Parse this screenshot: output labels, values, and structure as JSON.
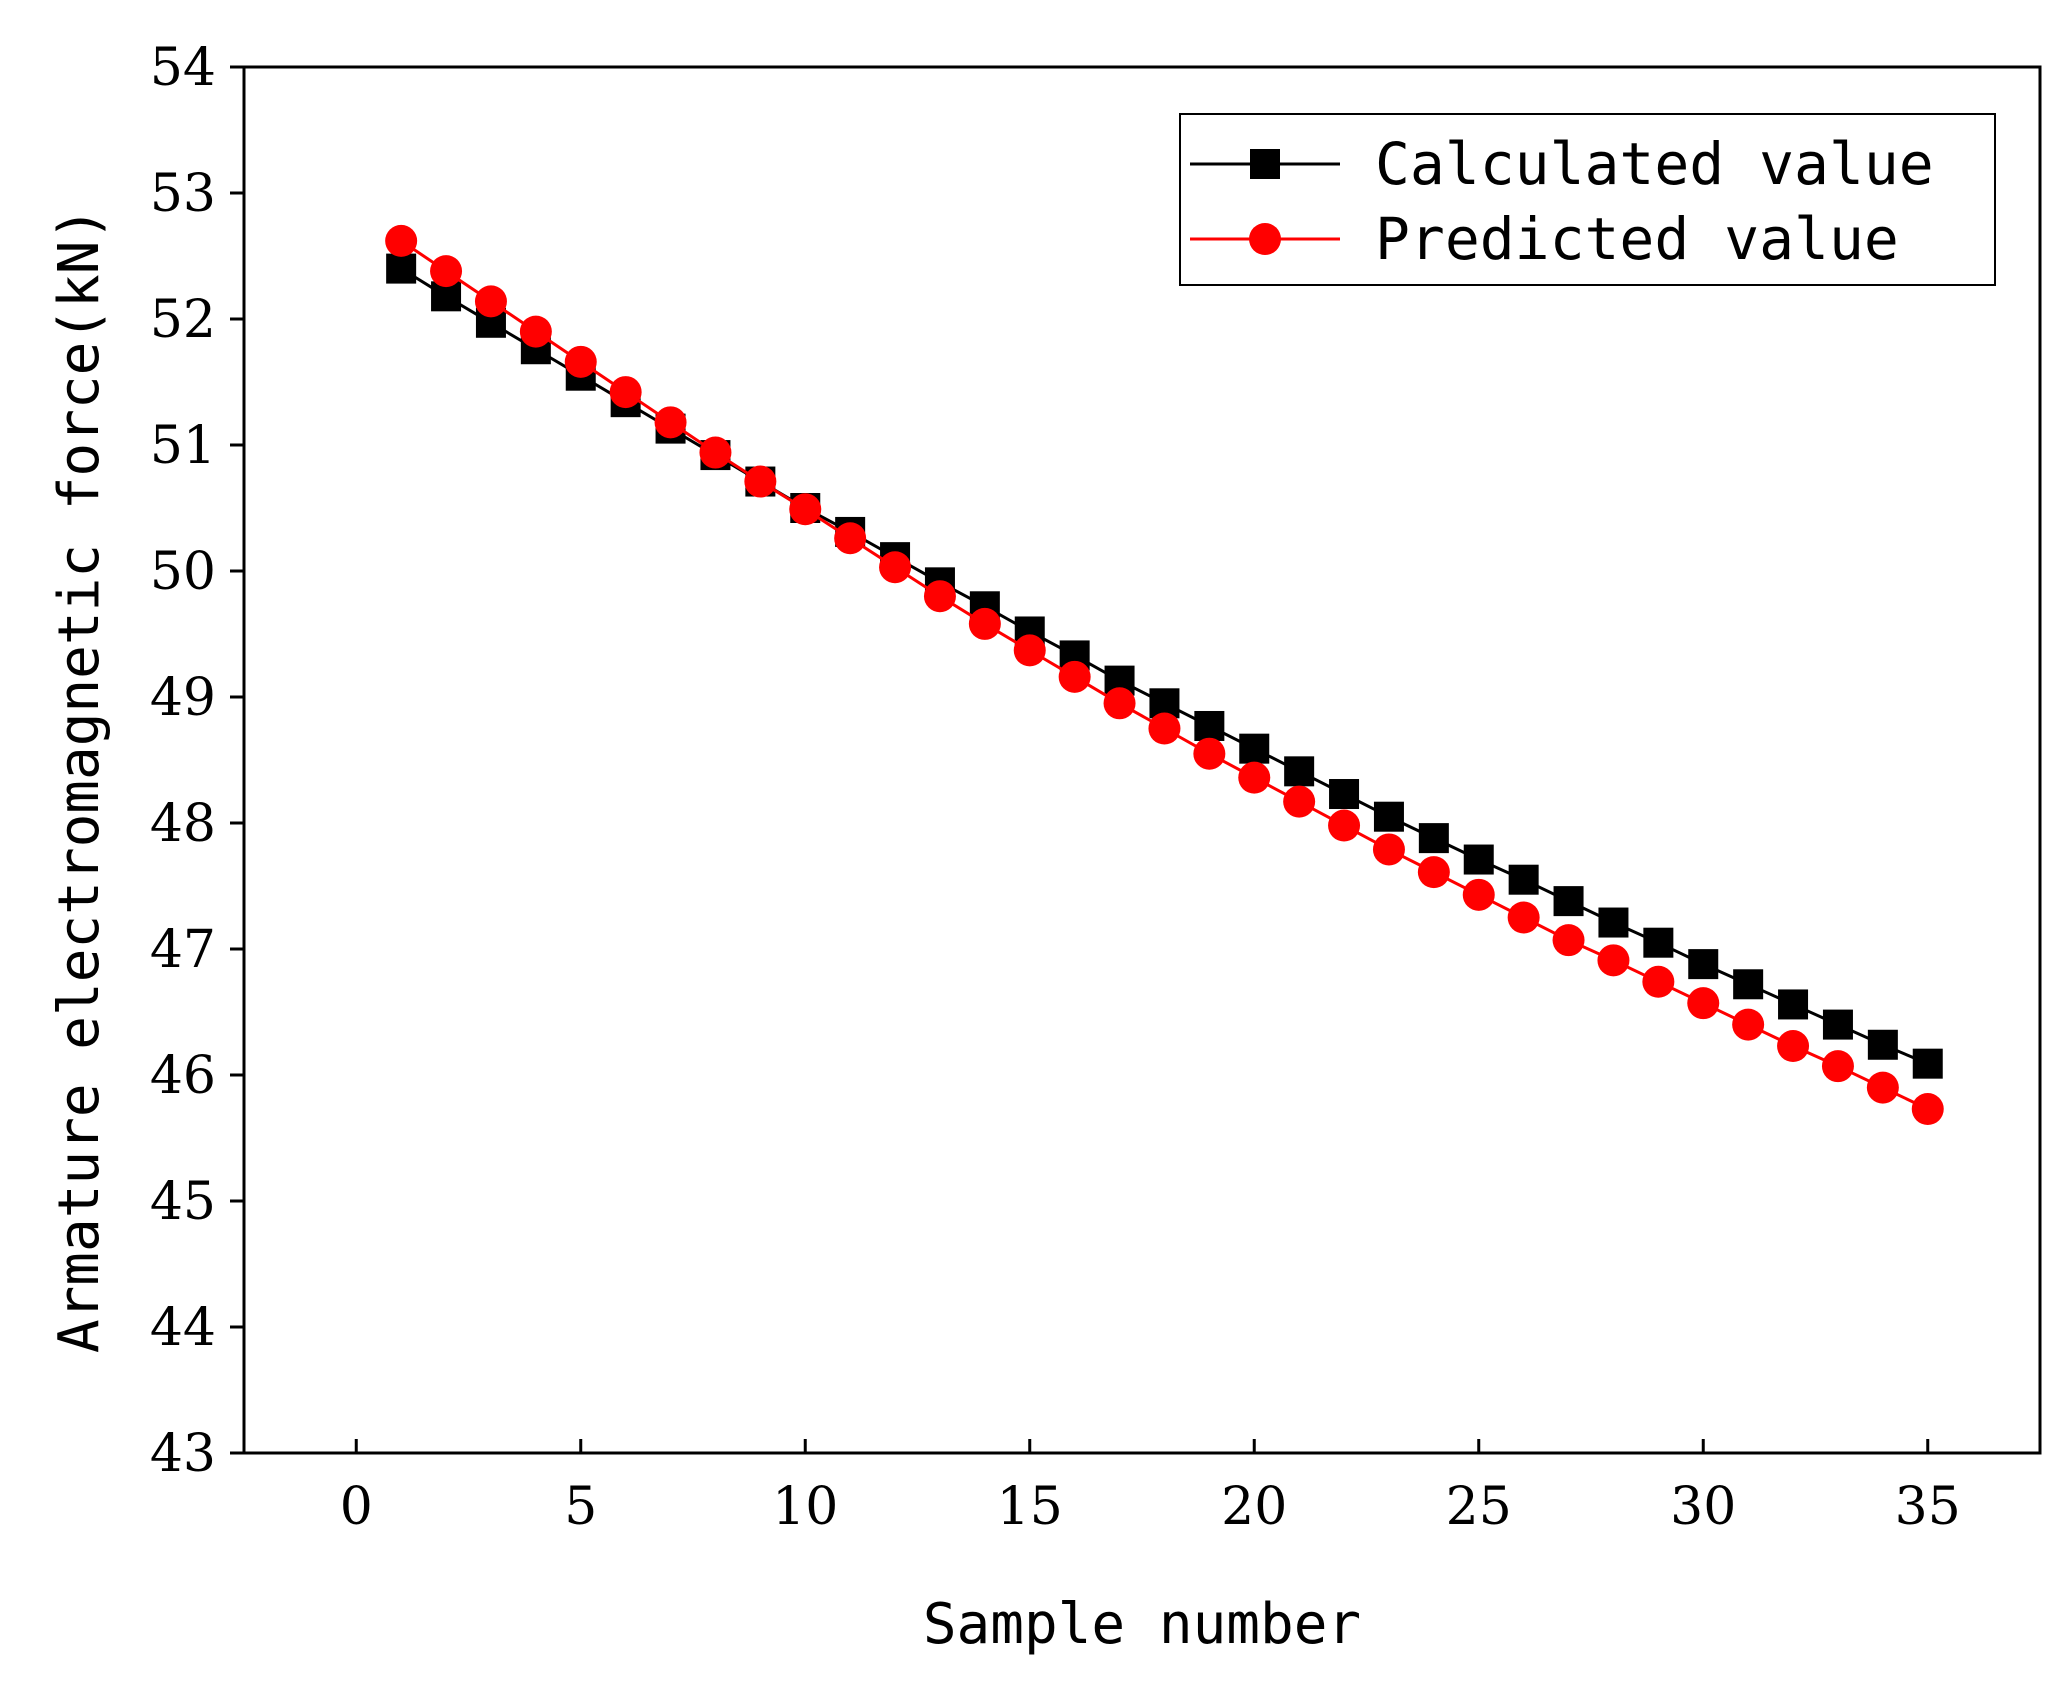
{
  "chart_data": {
    "type": "line",
    "xlabel": "Sample number",
    "ylabel": "Armature electromagnetic force(kN)",
    "xlim": [
      -2.5,
      37.5
    ],
    "ylim": [
      43,
      54
    ],
    "xticks": [
      0,
      5,
      10,
      15,
      20,
      25,
      30,
      35
    ],
    "yticks": [
      43,
      44,
      45,
      46,
      47,
      48,
      49,
      50,
      51,
      52,
      53,
      54
    ],
    "grid": false,
    "legend_position": "top-right",
    "series": [
      {
        "name": "Calculated value",
        "color": "#000000",
        "marker": "square",
        "x": [
          1,
          2,
          3,
          4,
          5,
          6,
          7,
          8,
          9,
          10,
          11,
          12,
          13,
          14,
          15,
          16,
          17,
          18,
          19,
          20,
          21,
          22,
          23,
          24,
          25,
          26,
          27,
          28,
          29,
          30,
          31,
          32,
          33,
          34,
          35
        ],
        "values": [
          52.4,
          52.18,
          51.97,
          51.76,
          51.55,
          51.34,
          51.13,
          50.92,
          50.71,
          50.5,
          50.31,
          50.11,
          49.91,
          49.72,
          49.52,
          49.33,
          49.13,
          48.95,
          48.77,
          48.59,
          48.41,
          48.23,
          48.05,
          47.88,
          47.71,
          47.55,
          47.38,
          47.21,
          47.05,
          46.88,
          46.72,
          46.56,
          46.4,
          46.24,
          46.09
        ]
      },
      {
        "name": "Predicted value",
        "color": "#ff0000",
        "marker": "circle",
        "x": [
          1,
          2,
          3,
          4,
          5,
          6,
          7,
          8,
          9,
          10,
          11,
          12,
          13,
          14,
          15,
          16,
          17,
          18,
          19,
          20,
          21,
          22,
          23,
          24,
          25,
          26,
          27,
          28,
          29,
          30,
          31,
          32,
          33,
          34,
          35
        ],
        "values": [
          52.62,
          52.38,
          52.14,
          51.9,
          51.66,
          51.42,
          51.18,
          50.94,
          50.71,
          50.49,
          50.26,
          50.03,
          49.8,
          49.58,
          49.37,
          49.16,
          48.95,
          48.75,
          48.55,
          48.36,
          48.17,
          47.98,
          47.79,
          47.61,
          47.43,
          47.25,
          47.07,
          46.91,
          46.74,
          46.57,
          46.4,
          46.23,
          46.07,
          45.9,
          45.73
        ]
      }
    ]
  }
}
